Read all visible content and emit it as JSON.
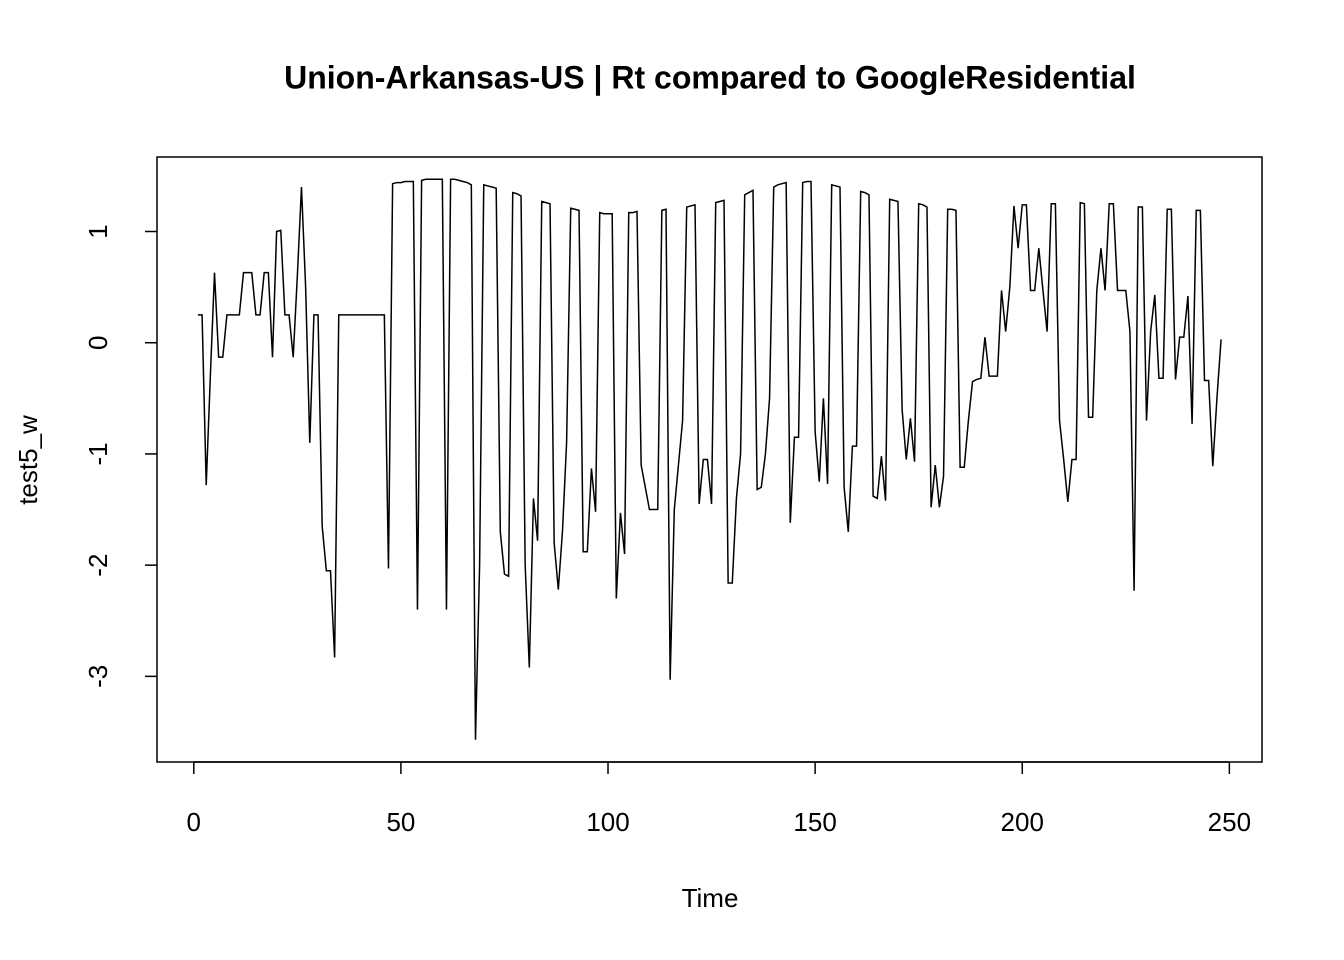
{
  "chart_data": {
    "type": "line",
    "title": "Union-Arkansas-US | Rt compared to GoogleResidential",
    "x_label": "Time",
    "y_label": "test5_w",
    "color": "#000000",
    "x": [
      1,
      2,
      3,
      4,
      5,
      6,
      7,
      8,
      9,
      10,
      11,
      12,
      13,
      14,
      15,
      16,
      17,
      18,
      19,
      20,
      21,
      22,
      23,
      24,
      25,
      26,
      27,
      28,
      29,
      30,
      31,
      32,
      33,
      34,
      35,
      36,
      37,
      38,
      39,
      40,
      41,
      42,
      43,
      44,
      45,
      46,
      47,
      48,
      49,
      50,
      51,
      52,
      53,
      54,
      55,
      56,
      57,
      58,
      59,
      60,
      61,
      62,
      63,
      64,
      65,
      66,
      67,
      68,
      69,
      70,
      71,
      72,
      73,
      74,
      75,
      76,
      77,
      78,
      79,
      80,
      81,
      82,
      83,
      84,
      85,
      86,
      87,
      88,
      89,
      90,
      91,
      92,
      93,
      94,
      95,
      96,
      97,
      98,
      99,
      100,
      101,
      102,
      103,
      104,
      105,
      106,
      107,
      108,
      109,
      110,
      111,
      112,
      113,
      114,
      115,
      116,
      117,
      118,
      119,
      120,
      121,
      122,
      123,
      124,
      125,
      126,
      127,
      128,
      129,
      130,
      131,
      132,
      133,
      134,
      135,
      136,
      137,
      138,
      139,
      140,
      141,
      142,
      143,
      144,
      145,
      146,
      147,
      148,
      149,
      150,
      151,
      152,
      153,
      154,
      155,
      156,
      157,
      158,
      159,
      160,
      161,
      162,
      163,
      164,
      165,
      166,
      167,
      168,
      169,
      170,
      171,
      172,
      173,
      174,
      175,
      176,
      177,
      178,
      179,
      180,
      181,
      182,
      183,
      184,
      185,
      186,
      187,
      188,
      189,
      190,
      191,
      192,
      193,
      194,
      195,
      196,
      197,
      198,
      199,
      200,
      201,
      202,
      203,
      204,
      205,
      206,
      207,
      208,
      209,
      210,
      211,
      212,
      213,
      214,
      215,
      216,
      217,
      218,
      219,
      220,
      221,
      222,
      223,
      224,
      225,
      226,
      227,
      228,
      229,
      230,
      231,
      232,
      233,
      234,
      235,
      236,
      237,
      238,
      239,
      240,
      241,
      242,
      243,
      244,
      245,
      246,
      247,
      248
    ],
    "values": [
      0.25,
      0.25,
      -1.28,
      -0.3,
      0.63,
      -0.13,
      -0.13,
      0.25,
      0.25,
      0.25,
      0.25,
      0.63,
      0.63,
      0.63,
      0.25,
      0.25,
      0.63,
      0.63,
      -0.13,
      1.0,
      1.01,
      0.25,
      0.25,
      -0.13,
      0.6,
      1.4,
      0.5,
      -0.9,
      0.25,
      0.25,
      -1.65,
      -2.05,
      -2.05,
      -2.83,
      0.25,
      0.25,
      0.25,
      0.25,
      0.25,
      0.25,
      0.25,
      0.25,
      0.25,
      0.25,
      0.25,
      0.25,
      -2.03,
      1.43,
      1.44,
      1.44,
      1.45,
      1.45,
      1.45,
      -2.4,
      1.46,
      1.47,
      1.47,
      1.47,
      1.47,
      1.47,
      -2.4,
      1.47,
      1.47,
      1.46,
      1.45,
      1.44,
      1.42,
      -3.57,
      -2.0,
      1.42,
      1.41,
      1.4,
      1.39,
      -1.7,
      -2.08,
      -2.1,
      1.35,
      1.34,
      1.32,
      -2.0,
      -2.92,
      -1.4,
      -1.78,
      1.27,
      1.26,
      1.25,
      -1.8,
      -2.22,
      -1.7,
      -0.9,
      1.21,
      1.2,
      1.19,
      -1.88,
      -1.88,
      -1.13,
      -1.52,
      1.17,
      1.16,
      1.16,
      1.16,
      -2.3,
      -1.53,
      -1.9,
      1.17,
      1.17,
      1.18,
      -1.1,
      -1.3,
      -1.5,
      -1.5,
      -1.5,
      1.19,
      1.2,
      -3.03,
      -1.5,
      -1.1,
      -0.7,
      1.22,
      1.23,
      1.24,
      -1.45,
      -1.05,
      -1.05,
      -1.45,
      1.26,
      1.27,
      1.28,
      -2.16,
      -2.16,
      -1.4,
      -1.0,
      1.33,
      1.35,
      1.37,
      -1.32,
      -1.3,
      -1.0,
      -0.5,
      1.4,
      1.42,
      1.43,
      1.44,
      -1.62,
      -0.85,
      -0.85,
      1.44,
      1.45,
      1.45,
      -0.8,
      -1.25,
      -0.5,
      -1.27,
      1.42,
      1.41,
      1.4,
      -1.3,
      -1.7,
      -0.93,
      -0.93,
      1.36,
      1.35,
      1.33,
      -1.38,
      -1.4,
      -1.02,
      -1.42,
      1.29,
      1.28,
      1.27,
      -0.6,
      -1.05,
      -0.68,
      -1.07,
      1.25,
      1.24,
      1.22,
      -1.48,
      -1.1,
      -1.48,
      -1.2,
      1.2,
      1.2,
      1.19,
      -1.12,
      -1.12,
      -0.7,
      -0.35,
      -0.33,
      -0.32,
      0.05,
      -0.3,
      -0.3,
      -0.3,
      0.47,
      0.1,
      0.5,
      1.23,
      0.85,
      1.24,
      1.24,
      0.47,
      0.47,
      0.85,
      0.47,
      0.1,
      1.25,
      1.25,
      -0.7,
      -1.05,
      -1.43,
      -1.05,
      -1.05,
      1.26,
      1.25,
      -0.67,
      -0.67,
      0.47,
      0.85,
      0.47,
      1.25,
      1.25,
      0.47,
      0.47,
      0.47,
      0.1,
      -2.23,
      1.22,
      1.22,
      -0.7,
      0.1,
      0.43,
      -0.32,
      -0.32,
      1.2,
      1.2,
      -0.33,
      0.05,
      0.05,
      0.42,
      -0.73,
      1.19,
      1.19,
      -0.34,
      -0.34,
      -1.11,
      -0.5,
      0.03
    ],
    "xlim": [
      -8.88,
      257.88
    ],
    "xticks": [
      0,
      50,
      100,
      150,
      200,
      250
    ],
    "ylim": [
      -3.77,
      1.67
    ],
    "yticks": [
      -3,
      -2,
      -1,
      0,
      1
    ]
  }
}
